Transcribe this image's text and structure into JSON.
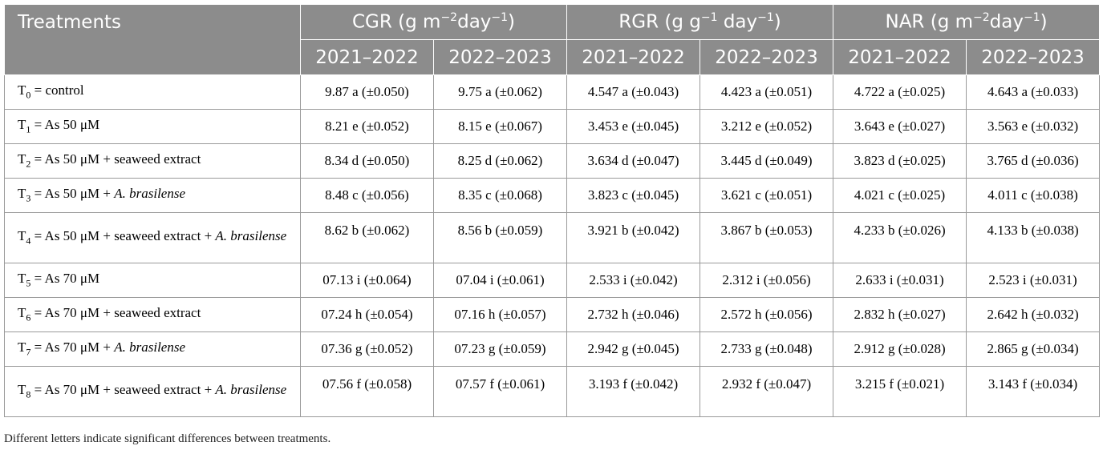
{
  "header": {
    "treatments": "Treatments",
    "groups": [
      {
        "pre": "CGR (g m",
        "sup1": "−2",
        "mid": "day",
        "sup2": "−1",
        "post": ")"
      },
      {
        "pre": "RGR (g g",
        "sup1": "−1",
        "mid": " day",
        "sup2": "−1",
        "post": ")"
      },
      {
        "pre": "NAR (g m",
        "sup1": "−2",
        "mid": "day",
        "sup2": "−1",
        "post": ")"
      }
    ],
    "years": [
      "2021–2022",
      "2022–2023",
      "2021–2022",
      "2022–2023",
      "2021–2022",
      "2022–2023"
    ]
  },
  "rows": [
    {
      "tsub": "0",
      "pre": " = control",
      "ital": "",
      "cells": [
        "9.87 a (±0.050)",
        "9.75 a (±0.062)",
        "4.547 a (±0.043)",
        "4.423 a (±0.051)",
        "4.722 a (±0.025)",
        "4.643 a (±0.033)"
      ]
    },
    {
      "tsub": "1",
      "pre": " = As 50 μM",
      "ital": "",
      "cells": [
        "8.21 e (±0.052)",
        "8.15 e (±0.067)",
        "3.453 e (±0.045)",
        "3.212 e (±0.052)",
        "3.643 e (±0.027)",
        "3.563 e (±0.032)"
      ]
    },
    {
      "tsub": "2",
      "pre": " = As 50 μM + seaweed extract",
      "ital": "",
      "cells": [
        "8.34 d (±0.050)",
        "8.25 d (±0.062)",
        "3.634 d (±0.047)",
        "3.445 d (±0.049)",
        "3.823 d (±0.025)",
        "3.765 d (±0.036)"
      ]
    },
    {
      "tsub": "3",
      "pre": " = As 50 μM + ",
      "ital": "A. brasilense",
      "cells": [
        "8.48 c (±0.056)",
        "8.35 c (±0.068)",
        "3.823 c (±0.045)",
        "3.621 c (±0.051)",
        "4.021 c (±0.025)",
        "4.011 c (±0.038)"
      ]
    },
    {
      "tsub": "4",
      "pre": " = As 50 μM + seaweed extract + ",
      "ital": "A. brasilense",
      "cells": [
        "8.62 b (±0.062)",
        "8.56 b (±0.059)",
        "3.921 b (±0.042)",
        "3.867 b (±0.053)",
        "4.233 b (±0.026)",
        "4.133 b (±0.038)"
      ]
    },
    {
      "tsub": "5",
      "pre": " = As 70 μM",
      "ital": "",
      "cells": [
        "07.13 i (±0.064)",
        "07.04 i (±0.061)",
        "2.533 i (±0.042)",
        "2.312 i (±0.056)",
        "2.633 i (±0.031)",
        "2.523 i (±0.031)"
      ]
    },
    {
      "tsub": "6",
      "pre": " = As 70 μM + seaweed extract",
      "ital": "",
      "cells": [
        "07.24 h (±0.054)",
        "07.16 h (±0.057)",
        "2.732 h (±0.046)",
        "2.572 h (±0.056)",
        "2.832 h (±0.027)",
        "2.642 h (±0.032)"
      ]
    },
    {
      "tsub": "7",
      "pre": " = As 70 μM + ",
      "ital": "A. brasilense",
      "cells": [
        "07.36 g (±0.052)",
        "07.23 g (±0.059)",
        "2.942 g (±0.045)",
        "2.733 g (±0.048)",
        "2.912 g (±0.028)",
        "2.865 g (±0.034)"
      ]
    },
    {
      "tsub": "8",
      "pre": " = As 70 μM + seaweed extract + ",
      "ital": "A. brasilense",
      "cells": [
        "07.56 f (±0.058)",
        "07.57 f (±0.061)",
        "3.193 f (±0.042)",
        "2.932 f (±0.047)",
        "3.215 f (±0.021)",
        "3.143 f (±0.034)"
      ]
    }
  ],
  "footnote": "Different letters indicate significant differences between treatments.",
  "colors": {
    "header_bg": "#8c8c8c",
    "header_text": "#ffffff",
    "border": "#9a9a9a"
  }
}
